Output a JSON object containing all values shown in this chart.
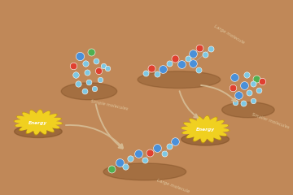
{
  "bg_color": "#c08858",
  "shadow_color": "#8B5A2B",
  "energy_color": "#F0D020",
  "energy_dark": "#C8A000",
  "arrow_color": "#d4b890",
  "text_color": "#e0c8a0",
  "blue_large": "#4a90d9",
  "blue_small": "#7ec8e3",
  "red": "#e04030",
  "green": "#50b050",
  "energy_label": "Energy",
  "simple_mol_label": "Simple molecules",
  "large_mol_label": "Large molecule",
  "large_mol_label2": "Large molecule",
  "smaller_mol_label": "Smaller molecules"
}
